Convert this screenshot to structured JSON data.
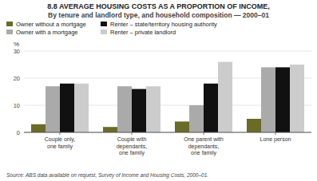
{
  "chart_data": {
    "type": "bar",
    "title": "8.8  AVERAGE HOUSING COSTS AS A PROPORTION OF INCOME,",
    "subtitle": "By tenure and landlord type, and household composition — 2000–01",
    "annotations": [
      "Source: ABS data available on request, Survey of Income and Housing Costs, 2000–01."
    ],
    "ylabel": "%",
    "categories": [
      "Couple only,\none family",
      "Couple with\ndependants,\none family",
      "One parent with\ndependants,\none family",
      "Lone person"
    ],
    "series": [
      {
        "name": "Owner without a mortgage",
        "color": "#6b6b28",
        "values": [
          3,
          2,
          4,
          5
        ]
      },
      {
        "name": "Owner with a mortgage",
        "color": "#aaaaaa",
        "values": [
          17,
          17,
          10,
          24
        ]
      },
      {
        "name": "Renter – state/territory housing authority",
        "color": "#111111",
        "values": [
          18,
          16,
          18,
          24
        ]
      },
      {
        "name": "Renter – private landlord",
        "color": "#cccccc",
        "values": [
          18,
          17,
          26,
          25
        ]
      }
    ],
    "ylim": [
      0,
      30
    ],
    "yticks": [
      0,
      10,
      20,
      30
    ],
    "grid": true,
    "legend": "upper left"
  }
}
